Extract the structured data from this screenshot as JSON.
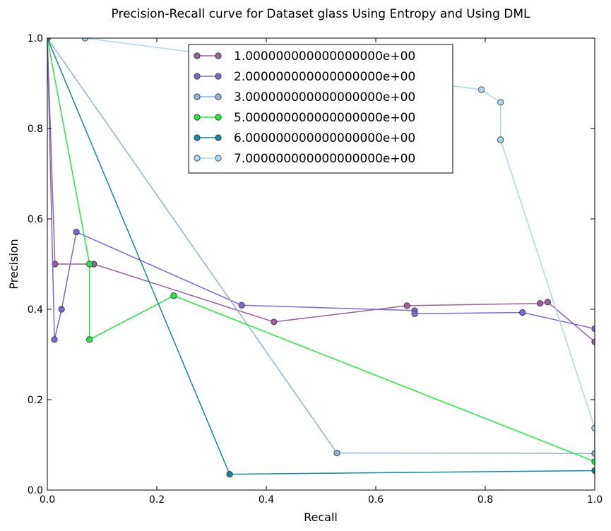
{
  "chart_data": {
    "type": "line",
    "title": "Precision-Recall curve for Dataset glass Using Entropy and Using DML",
    "xlabel": "Recall",
    "ylabel": "Precision",
    "xlim": [
      0.0,
      1.0
    ],
    "ylim": [
      0.0,
      1.0
    ],
    "x_ticks": [
      "0.0",
      "0.2",
      "0.4",
      "0.6",
      "0.8",
      "1.0"
    ],
    "y_ticks": [
      "0.0",
      "0.2",
      "0.4",
      "0.6",
      "0.8",
      "1.0"
    ],
    "grid": false,
    "legend_position": "top-center",
    "series": [
      {
        "name": "1.000000000000000000e+00",
        "color": "#9b5f9e",
        "points": [
          [
            0.0,
            1.0
          ],
          [
            0.014,
            0.5
          ],
          [
            0.085,
            0.5
          ],
          [
            0.414,
            0.372
          ],
          [
            0.657,
            0.408
          ],
          [
            0.9,
            0.413
          ],
          [
            0.914,
            0.416
          ],
          [
            1.0,
            0.328
          ]
        ]
      },
      {
        "name": "2.000000000000000000e+00",
        "color": "#7b68d8",
        "points": [
          [
            0.0,
            1.0
          ],
          [
            0.013,
            0.333
          ],
          [
            0.026,
            0.4
          ],
          [
            0.053,
            0.571
          ],
          [
            0.355,
            0.409
          ],
          [
            0.671,
            0.397
          ],
          [
            0.671,
            0.39
          ],
          [
            0.868,
            0.393
          ],
          [
            1.0,
            0.357
          ]
        ]
      },
      {
        "name": "3.000000000000000000e+00",
        "color": "#8fb3d9",
        "points": [
          [
            0.0,
            1.0
          ],
          [
            0.529,
            0.082
          ],
          [
            1.0,
            0.081
          ],
          [
            1.0,
            0.137
          ]
        ]
      },
      {
        "name": "5.000000000000000000e+00",
        "color": "#19ef3f",
        "points": [
          [
            0.0,
            1.0
          ],
          [
            0.077,
            0.5
          ],
          [
            0.077,
            0.333
          ],
          [
            0.231,
            0.43
          ],
          [
            0.231,
            0.43
          ],
          [
            1.0,
            0.063
          ]
        ]
      },
      {
        "name": "6.000000000000000000e+00",
        "color": "#12899e",
        "points": [
          [
            0.0,
            1.0
          ],
          [
            0.333,
            0.035
          ],
          [
            1.0,
            0.043
          ]
        ]
      },
      {
        "name": "7.000000000000000000e+00",
        "color": "#a8d8f0",
        "points": [
          [
            0.069,
            1.0
          ],
          [
            0.793,
            0.886
          ],
          [
            0.828,
            0.858
          ],
          [
            0.828,
            0.775
          ],
          [
            0.828,
            0.775
          ],
          [
            1.0,
            0.137
          ]
        ]
      }
    ]
  }
}
